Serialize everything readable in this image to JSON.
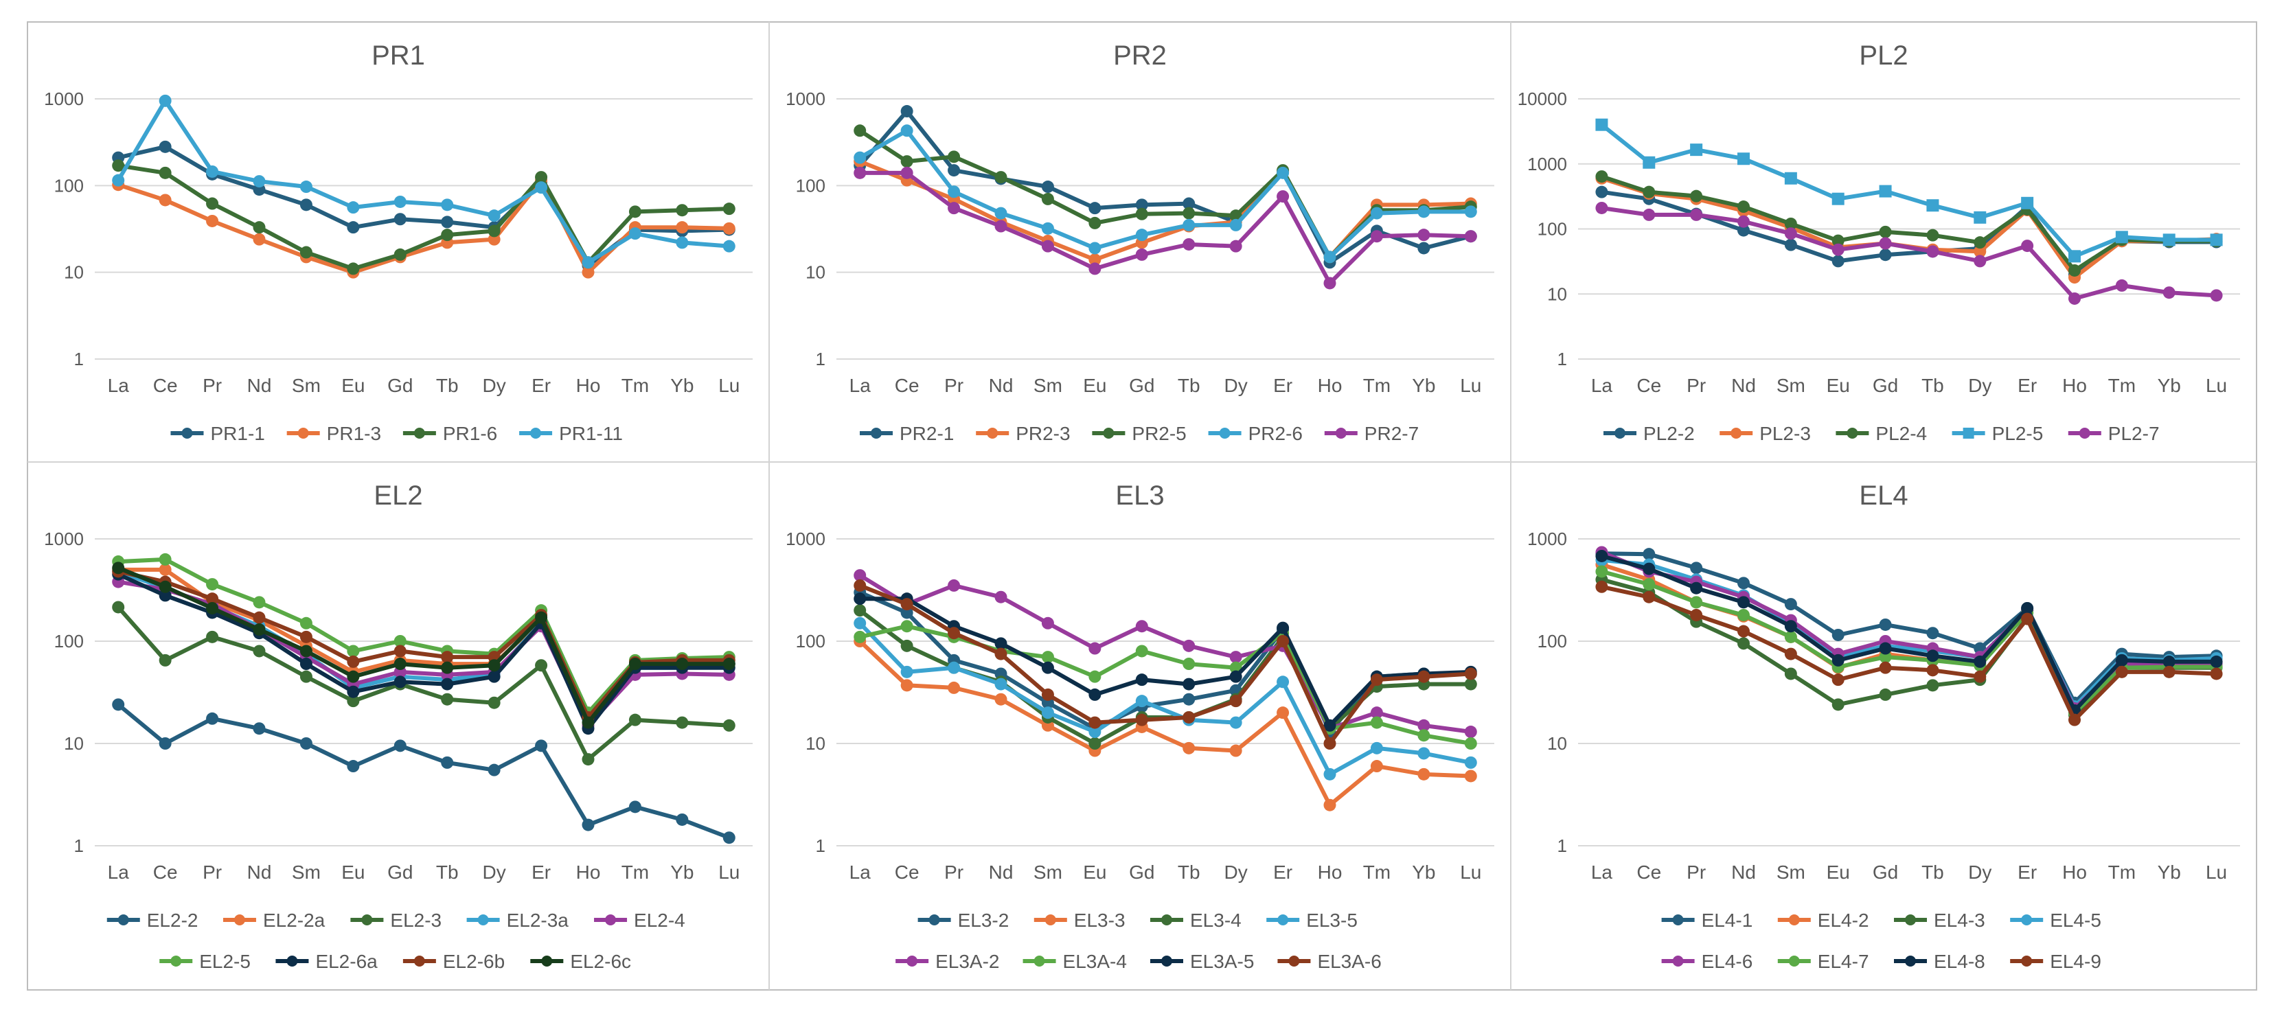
{
  "chart_data": [
    {
      "type": "line",
      "title": "PR1",
      "ylim": [
        1,
        1000
      ],
      "yscale": "log",
      "yticks": [
        "1",
        "10",
        "100",
        "1000"
      ],
      "categories": [
        "La",
        "Ce",
        "Pr",
        "Nd",
        "Sm",
        "Eu",
        "Gd",
        "Tb",
        "Dy",
        "Er",
        "Ho",
        "Tm",
        "Yb",
        "Lu"
      ],
      "series": [
        {
          "name": "PR1-1",
          "color": "#255e7e",
          "marker": "circle",
          "values": [
            210,
            280,
            135,
            90,
            60,
            33,
            41,
            38,
            33,
            110,
            12,
            31,
            30,
            31
          ]
        },
        {
          "name": "PR1-3",
          "color": "#e8743b",
          "marker": "circle",
          "values": [
            102,
            68,
            39,
            24,
            15,
            10,
            15,
            22,
            24,
            115,
            10,
            33,
            33,
            32
          ]
        },
        {
          "name": "PR1-6",
          "color": "#3c6e35",
          "marker": "circle",
          "values": [
            170,
            140,
            62,
            33,
            17,
            11,
            16,
            27,
            30,
            125,
            13,
            50,
            52,
            54
          ]
        },
        {
          "name": "PR1-11",
          "color": "#3ba3d0",
          "marker": "circle",
          "values": [
            115,
            950,
            145,
            112,
            97,
            56,
            65,
            60,
            45,
            95,
            13,
            28,
            22,
            20
          ]
        }
      ]
    },
    {
      "type": "line",
      "title": "PR2",
      "ylim": [
        1,
        1000
      ],
      "yscale": "log",
      "yticks": [
        "1",
        "10",
        "100",
        "1000"
      ],
      "categories": [
        "La",
        "Ce",
        "Pr",
        "Nd",
        "Sm",
        "Eu",
        "Gd",
        "Tb",
        "Dy",
        "Er",
        "Ho",
        "Tm",
        "Yb",
        "Lu"
      ],
      "series": [
        {
          "name": "PR2-1",
          "color": "#255e7e",
          "marker": "circle",
          "values": [
            170,
            720,
            150,
            120,
            97,
            55,
            60,
            62,
            38,
            145,
            13,
            30,
            19,
            26
          ]
        },
        {
          "name": "PR2-3",
          "color": "#e8743b",
          "marker": "circle",
          "values": [
            190,
            115,
            70,
            38,
            23,
            14,
            22,
            34,
            38,
            145,
            15,
            60,
            60,
            62
          ]
        },
        {
          "name": "PR2-5",
          "color": "#3c6e35",
          "marker": "circle",
          "values": [
            430,
            190,
            215,
            125,
            70,
            37,
            47,
            48,
            45,
            150,
            15,
            52,
            52,
            57
          ]
        },
        {
          "name": "PR2-6",
          "color": "#3ba3d0",
          "marker": "circle",
          "values": [
            210,
            430,
            85,
            48,
            32,
            19,
            27,
            35,
            35,
            140,
            15,
            48,
            50,
            50
          ]
        },
        {
          "name": "PR2-7",
          "color": "#983b9c",
          "marker": "circle",
          "values": [
            140,
            140,
            55,
            34,
            20,
            11,
            16,
            21,
            20,
            75,
            7.5,
            26,
            27,
            26
          ]
        }
      ]
    },
    {
      "type": "line",
      "title": "PL2",
      "ylim": [
        1,
        10000
      ],
      "yscale": "log",
      "yticks": [
        "1",
        "10",
        "100",
        "1000",
        "10000"
      ],
      "categories": [
        "La",
        "Ce",
        "Pr",
        "Nd",
        "Sm",
        "Eu",
        "Gd",
        "Tb",
        "Dy",
        "Er",
        "Ho",
        "Tm",
        "Yb",
        "Lu"
      ],
      "series": [
        {
          "name": "PL2-2",
          "color": "#255e7e",
          "marker": "circle",
          "values": [
            370,
            290,
            170,
            95,
            57,
            32,
            40,
            45,
            50,
            220,
            20,
            65,
            63,
            63
          ]
        },
        {
          "name": "PL2-3",
          "color": "#e8743b",
          "marker": "circle",
          "values": [
            600,
            350,
            290,
            190,
            105,
            52,
            60,
            48,
            45,
            195,
            18,
            65,
            65,
            70
          ]
        },
        {
          "name": "PL2-4",
          "color": "#3c6e35",
          "marker": "circle",
          "values": [
            640,
            370,
            320,
            220,
            120,
            66,
            90,
            80,
            62,
            200,
            23,
            68,
            65,
            65
          ]
        },
        {
          "name": "PL2-5",
          "color": "#3ba3d0",
          "marker": "square",
          "values": [
            4000,
            1050,
            1650,
            1200,
            600,
            290,
            380,
            230,
            150,
            250,
            38,
            75,
            68,
            68
          ]
        },
        {
          "name": "PL2-7",
          "color": "#983b9c",
          "marker": "circle",
          "values": [
            210,
            165,
            165,
            130,
            85,
            48,
            60,
            45,
            32,
            55,
            8.5,
            13.5,
            10.5,
            9.5
          ]
        }
      ]
    },
    {
      "type": "line",
      "title": "EL2",
      "ylim": [
        1,
        1000
      ],
      "yscale": "log",
      "yticks": [
        "1",
        "10",
        "100",
        "1000"
      ],
      "categories": [
        "La",
        "Ce",
        "Pr",
        "Nd",
        "Sm",
        "Eu",
        "Gd",
        "Tb",
        "Dy",
        "Er",
        "Ho",
        "Tm",
        "Yb",
        "Lu"
      ],
      "series": [
        {
          "name": "EL2-2",
          "color": "#255e7e",
          "marker": "circle",
          "values": [
            24,
            10,
            17.5,
            14,
            10,
            6,
            9.5,
            6.5,
            5.5,
            9.5,
            1.6,
            2.4,
            1.8,
            1.2
          ]
        },
        {
          "name": "EL2-2a",
          "color": "#e8743b",
          "marker": "circle",
          "values": [
            500,
            500,
            240,
            160,
            90,
            50,
            65,
            60,
            60,
            160,
            18,
            60,
            60,
            60
          ]
        },
        {
          "name": "EL2-3",
          "color": "#3c6e35",
          "marker": "circle",
          "values": [
            215,
            65,
            110,
            80,
            45,
            26,
            38,
            27,
            25,
            58,
            7,
            17,
            16,
            15
          ]
        },
        {
          "name": "EL2-3a",
          "color": "#3ba3d0",
          "marker": "circle",
          "values": [
            480,
            330,
            220,
            140,
            75,
            35,
            45,
            42,
            48,
            150,
            17,
            55,
            55,
            60
          ]
        },
        {
          "name": "EL2-4",
          "color": "#983b9c",
          "marker": "circle",
          "values": [
            380,
            320,
            230,
            130,
            70,
            38,
            50,
            47,
            50,
            140,
            15,
            47,
            48,
            47
          ]
        },
        {
          "name": "EL2-5",
          "color": "#5aaa46",
          "marker": "circle",
          "values": [
            600,
            630,
            360,
            240,
            150,
            80,
            100,
            80,
            75,
            200,
            20,
            65,
            68,
            70
          ]
        },
        {
          "name": "EL2-6a",
          "color": "#0c2d48",
          "marker": "circle",
          "values": [
            450,
            280,
            190,
            120,
            60,
            32,
            40,
            38,
            45,
            150,
            14,
            55,
            55,
            55
          ]
        },
        {
          "name": "EL2-6b",
          "color": "#8b3a1c",
          "marker": "circle",
          "values": [
            480,
            380,
            260,
            170,
            110,
            63,
            80,
            70,
            70,
            180,
            18,
            62,
            65,
            65
          ]
        },
        {
          "name": "EL2-6c",
          "color": "#173d1b",
          "marker": "circle",
          "values": [
            520,
            340,
            210,
            130,
            80,
            45,
            60,
            55,
            58,
            170,
            16,
            60,
            60,
            60
          ]
        }
      ]
    },
    {
      "type": "line",
      "title": "EL3",
      "ylim": [
        1,
        1000
      ],
      "yscale": "log",
      "yticks": [
        "1",
        "10",
        "100",
        "1000"
      ],
      "categories": [
        "La",
        "Ce",
        "Pr",
        "Nd",
        "Sm",
        "Eu",
        "Gd",
        "Tb",
        "Dy",
        "Er",
        "Ho",
        "Tm",
        "Yb",
        "Lu"
      ],
      "series": [
        {
          "name": "EL3-2",
          "color": "#255e7e",
          "marker": "circle",
          "values": [
            300,
            190,
            65,
            48,
            25,
            14,
            23,
            27,
            33,
            130,
            13,
            45,
            48,
            48
          ]
        },
        {
          "name": "EL3-3",
          "color": "#e8743b",
          "marker": "circle",
          "values": [
            100,
            37,
            35,
            27,
            15,
            8.5,
            14.5,
            9,
            8.5,
            20,
            2.5,
            6,
            5,
            4.8
          ]
        },
        {
          "name": "EL3-4",
          "color": "#3c6e35",
          "marker": "circle",
          "values": [
            200,
            90,
            55,
            40,
            18,
            10,
            18,
            18,
            27,
            110,
            14,
            36,
            38,
            38
          ]
        },
        {
          "name": "EL3-5",
          "color": "#3ba3d0",
          "marker": "circle",
          "values": [
            150,
            50,
            55,
            38,
            20,
            13,
            26,
            17,
            16,
            40,
            5,
            9,
            8,
            6.5
          ]
        },
        {
          "name": "EL3A-2",
          "color": "#983b9c",
          "marker": "circle",
          "values": [
            440,
            230,
            350,
            270,
            150,
            85,
            140,
            90,
            70,
            90,
            14,
            20,
            15,
            13
          ]
        },
        {
          "name": "EL3A-4",
          "color": "#5aaa46",
          "marker": "circle",
          "values": [
            110,
            140,
            110,
            80,
            70,
            45,
            80,
            60,
            55,
            120,
            14,
            16,
            12,
            10
          ]
        },
        {
          "name": "EL3A-5",
          "color": "#0c2d48",
          "marker": "circle",
          "values": [
            260,
            260,
            140,
            95,
            55,
            30,
            42,
            38,
            45,
            135,
            15,
            45,
            48,
            50
          ]
        },
        {
          "name": "EL3A-6",
          "color": "#8b3a1c",
          "marker": "circle",
          "values": [
            350,
            230,
            120,
            75,
            30,
            16,
            17,
            18,
            26,
            100,
            10,
            42,
            45,
            48
          ]
        }
      ]
    },
    {
      "type": "line",
      "title": "EL4",
      "ylim": [
        1,
        1000
      ],
      "yscale": "log",
      "yticks": [
        "1",
        "10",
        "100",
        "1000"
      ],
      "categories": [
        "La",
        "Ce",
        "Pr",
        "Nd",
        "Sm",
        "Eu",
        "Gd",
        "Tb",
        "Dy",
        "Er",
        "Ho",
        "Tm",
        "Yb",
        "Lu"
      ],
      "series": [
        {
          "name": "EL4-1",
          "color": "#255e7e",
          "marker": "circle",
          "values": [
            720,
            710,
            520,
            370,
            230,
            115,
            145,
            120,
            85,
            210,
            25,
            75,
            70,
            72
          ]
        },
        {
          "name": "EL4-2",
          "color": "#e8743b",
          "marker": "circle",
          "values": [
            560,
            400,
            240,
            175,
            110,
            55,
            75,
            65,
            60,
            200,
            22,
            60,
            60,
            58
          ]
        },
        {
          "name": "EL4-3",
          "color": "#3c6e35",
          "marker": "circle",
          "values": [
            400,
            300,
            155,
            95,
            48,
            24,
            30,
            37,
            42,
            170,
            19,
            55,
            55,
            55
          ]
        },
        {
          "name": "EL4-5",
          "color": "#3ba3d0",
          "marker": "circle",
          "values": [
            620,
            560,
            400,
            280,
            150,
            70,
            90,
            80,
            70,
            200,
            23,
            68,
            65,
            68
          ]
        },
        {
          "name": "EL4-6",
          "color": "#983b9c",
          "marker": "circle",
          "values": [
            740,
            480,
            380,
            270,
            160,
            75,
            100,
            85,
            70,
            200,
            22,
            60,
            60,
            60
          ]
        },
        {
          "name": "EL4-7",
          "color": "#5aaa46",
          "marker": "circle",
          "values": [
            480,
            360,
            240,
            180,
            110,
            56,
            70,
            65,
            58,
            190,
            20,
            55,
            56,
            56
          ]
        },
        {
          "name": "EL4-8",
          "color": "#0c2d48",
          "marker": "circle",
          "values": [
            680,
            510,
            330,
            240,
            140,
            65,
            85,
            72,
            63,
            210,
            21,
            65,
            63,
            63
          ]
        },
        {
          "name": "EL4-9",
          "color": "#8b3a1c",
          "marker": "circle",
          "values": [
            340,
            270,
            180,
            125,
            75,
            42,
            55,
            52,
            45,
            165,
            17,
            50,
            50,
            48
          ]
        }
      ]
    }
  ]
}
